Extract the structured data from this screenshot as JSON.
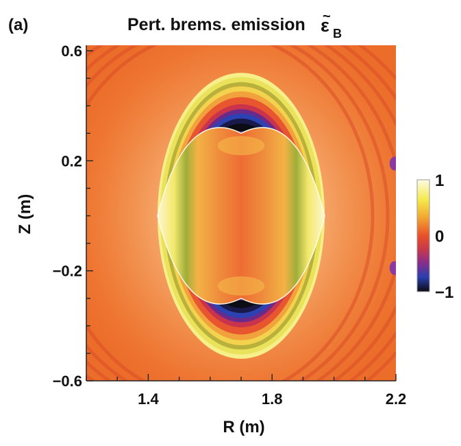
{
  "panel_label": "(a)",
  "chart_data": {
    "type": "heatmap",
    "title": "Pert. brems. emission",
    "title_symbol": "ε",
    "title_symbol_accent": "~",
    "title_symbol_subscript": "B",
    "xlabel": "R (m)",
    "ylabel": "Z (m)",
    "xlim": [
      1.2,
      2.2
    ],
    "ylim": [
      -0.6,
      0.62
    ],
    "x_ticks": [
      1.4,
      1.8,
      2.2
    ],
    "x_tick_labels": [
      "1.4",
      "1.8",
      "2.2"
    ],
    "y_ticks": [
      0.6,
      0.2,
      -0.2,
      -0.6
    ],
    "y_tick_labels": [
      "0.6",
      "0.2",
      "−0.2",
      "−0.6"
    ],
    "colorbar": {
      "range": [
        -1,
        1
      ],
      "ticks": [
        1,
        0,
        -1
      ],
      "tick_labels": [
        "1",
        "0",
        "−1"
      ],
      "colors": [
        "#fdfbe6",
        "#f5e94a",
        "#f2a531",
        "#e8502a",
        "#c8394a",
        "#8a2d8a",
        "#2a3fae",
        "#0c0c14"
      ]
    },
    "background_color": "#f0782e",
    "plasma": {
      "r_center": 1.7,
      "r_minor": 0.27,
      "z_half": 0.52
    },
    "inner_lens": {
      "r_left": 1.43,
      "r_right": 1.97,
      "z_half": 0.3
    }
  }
}
